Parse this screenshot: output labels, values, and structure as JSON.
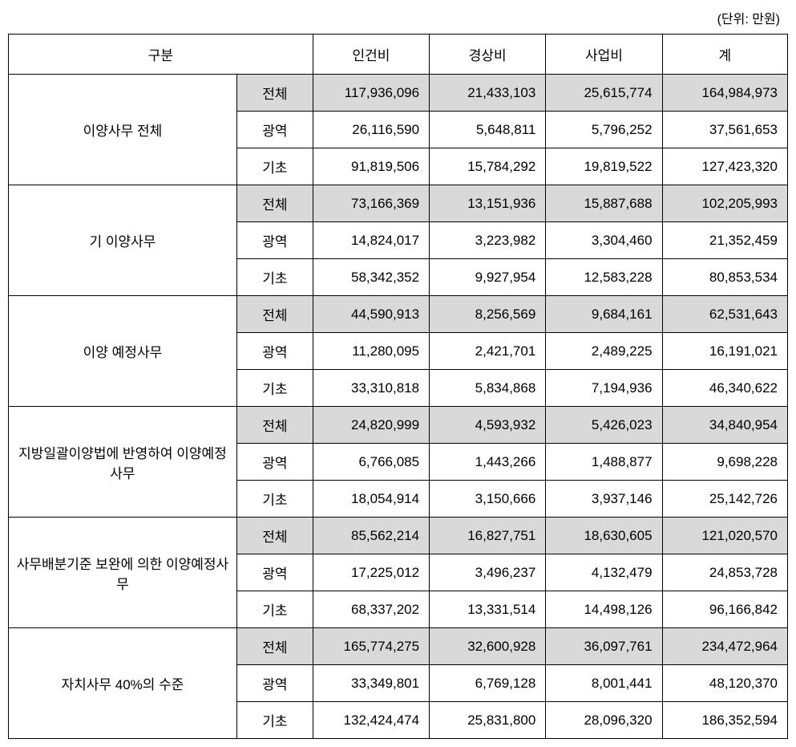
{
  "unit_label": "(단위: 만원)",
  "headers": {
    "category": "구분",
    "col1": "인건비",
    "col2": "경상비",
    "col3": "사업비",
    "col4": "계"
  },
  "sub_labels": {
    "total": "전체",
    "wide": "광역",
    "basic": "기초"
  },
  "groups": [
    {
      "name": "이양사무 전체",
      "rows": [
        {
          "sub": "total",
          "v": [
            "117,936,096",
            "21,433,103",
            "25,615,774",
            "164,984,973"
          ]
        },
        {
          "sub": "wide",
          "v": [
            "26,116,590",
            "5,648,811",
            "5,796,252",
            "37,561,653"
          ]
        },
        {
          "sub": "basic",
          "v": [
            "91,819,506",
            "15,784,292",
            "19,819,522",
            "127,423,320"
          ]
        }
      ]
    },
    {
      "name": "기 이양사무",
      "rows": [
        {
          "sub": "total",
          "v": [
            "73,166,369",
            "13,151,936",
            "15,887,688",
            "102,205,993"
          ]
        },
        {
          "sub": "wide",
          "v": [
            "14,824,017",
            "3,223,982",
            "3,304,460",
            "21,352,459"
          ]
        },
        {
          "sub": "basic",
          "v": [
            "58,342,352",
            "9,927,954",
            "12,583,228",
            "80,853,534"
          ]
        }
      ]
    },
    {
      "name": "이양 예정사무",
      "rows": [
        {
          "sub": "total",
          "v": [
            "44,590,913",
            "8,256,569",
            "9,684,161",
            "62,531,643"
          ]
        },
        {
          "sub": "wide",
          "v": [
            "11,280,095",
            "2,421,701",
            "2,489,225",
            "16,191,021"
          ]
        },
        {
          "sub": "basic",
          "v": [
            "33,310,818",
            "5,834,868",
            "7,194,936",
            "46,340,622"
          ]
        }
      ]
    },
    {
      "name": "지방일괄이양법에 반영하여 이양예정사무",
      "rows": [
        {
          "sub": "total",
          "v": [
            "24,820,999",
            "4,593,932",
            "5,426,023",
            "34,840,954"
          ]
        },
        {
          "sub": "wide",
          "v": [
            "6,766,085",
            "1,443,266",
            "1,488,877",
            "9,698,228"
          ]
        },
        {
          "sub": "basic",
          "v": [
            "18,054,914",
            "3,150,666",
            "3,937,146",
            "25,142,726"
          ]
        }
      ]
    },
    {
      "name": "사무배분기준 보완에 의한 이양예정사무",
      "rows": [
        {
          "sub": "total",
          "v": [
            "85,562,214",
            "16,827,751",
            "18,630,605",
            "121,020,570"
          ]
        },
        {
          "sub": "wide",
          "v": [
            "17,225,012",
            "3,496,237",
            "4,132,479",
            "24,853,728"
          ]
        },
        {
          "sub": "basic",
          "v": [
            "68,337,202",
            "13,331,514",
            "14,498,126",
            "96,166,842"
          ]
        }
      ]
    },
    {
      "name": "자치사무 40%의 수준",
      "rows": [
        {
          "sub": "total",
          "v": [
            "165,774,275",
            "32,600,928",
            "36,097,761",
            "234,472,964"
          ]
        },
        {
          "sub": "wide",
          "v": [
            "33,349,801",
            "6,769,128",
            "8,001,441",
            "48,120,370"
          ]
        },
        {
          "sub": "basic",
          "v": [
            "132,424,474",
            "25,831,800",
            "28,096,320",
            "186,352,594"
          ]
        }
      ]
    }
  ]
}
